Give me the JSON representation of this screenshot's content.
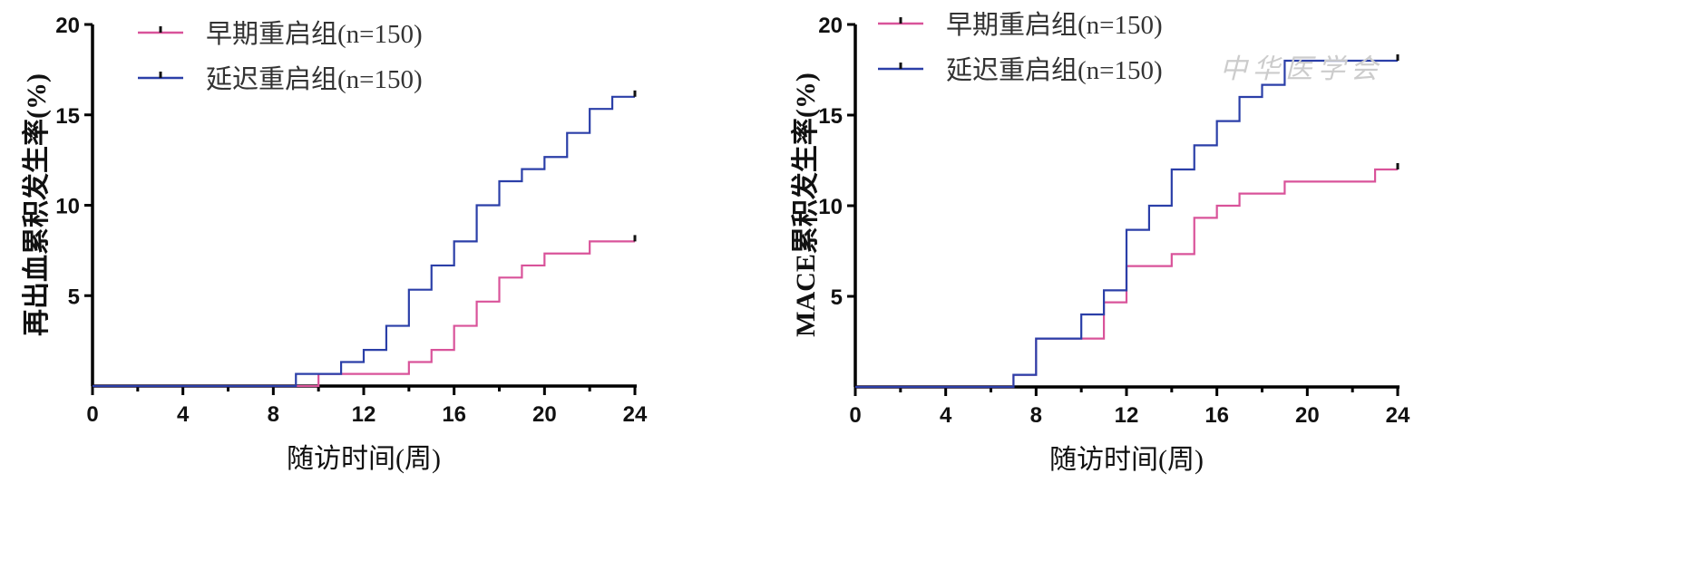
{
  "chart_data": [
    {
      "type": "line",
      "step": true,
      "title": "",
      "xlabel": "随访时间(周)",
      "ylabel": "再出血累积发生率(%)",
      "xlim": [
        0,
        24
      ],
      "ylim": [
        0,
        20
      ],
      "xticks": [
        0,
        4,
        8,
        12,
        16,
        20,
        24
      ],
      "yticks": [
        5,
        10,
        15,
        20
      ],
      "grid": false,
      "legend_position": "top-left",
      "series": [
        {
          "name": "早期重启组",
          "n_label": "(n=150)",
          "color": "#d9539a",
          "x": [
            0,
            10,
            14,
            15,
            16,
            17,
            18,
            19,
            20,
            22,
            24
          ],
          "y": [
            0,
            0.67,
            1.33,
            2.0,
            3.33,
            4.67,
            6.0,
            6.67,
            7.33,
            8.0,
            8.0
          ]
        },
        {
          "name": "延迟重启组",
          "n_label": "(n=150)",
          "color": "#2b3fa8",
          "x": [
            0,
            9,
            11,
            12,
            13,
            14,
            15,
            16,
            17,
            18,
            19,
            20,
            21,
            22,
            23,
            24
          ],
          "y": [
            0,
            0.67,
            1.33,
            2.0,
            3.33,
            5.33,
            6.67,
            8.0,
            10.0,
            11.33,
            12.0,
            12.67,
            14.0,
            15.33,
            16.0,
            16.0
          ]
        }
      ]
    },
    {
      "type": "line",
      "step": true,
      "title": "",
      "xlabel": "随访时间(周)",
      "ylabel": "MACE累积发生率(%)",
      "xlim": [
        0,
        24
      ],
      "ylim": [
        0,
        20
      ],
      "xticks": [
        0,
        4,
        8,
        12,
        16,
        20,
        24
      ],
      "yticks": [
        5,
        10,
        15,
        20
      ],
      "grid": false,
      "legend_position": "top-left",
      "watermark": "中华医学会",
      "series": [
        {
          "name": "早期重启组",
          "n_label": "(n=150)",
          "color": "#d9539a",
          "x": [
            0,
            7,
            8,
            11,
            12,
            14,
            15,
            16,
            17,
            19,
            23,
            24
          ],
          "y": [
            0,
            0.67,
            2.67,
            4.67,
            6.67,
            7.33,
            9.33,
            10.0,
            10.67,
            11.33,
            12.0,
            12.0
          ]
        },
        {
          "name": "延迟重启组",
          "n_label": "(n=150)",
          "color": "#2b3fa8",
          "x": [
            0,
            7,
            8,
            10,
            11,
            12,
            13,
            14,
            15,
            16,
            17,
            18,
            19,
            24
          ],
          "y": [
            0,
            0.67,
            2.67,
            4.0,
            5.33,
            8.67,
            10.0,
            12.0,
            13.33,
            14.67,
            16.0,
            16.67,
            18.0,
            18.0
          ]
        }
      ]
    }
  ]
}
